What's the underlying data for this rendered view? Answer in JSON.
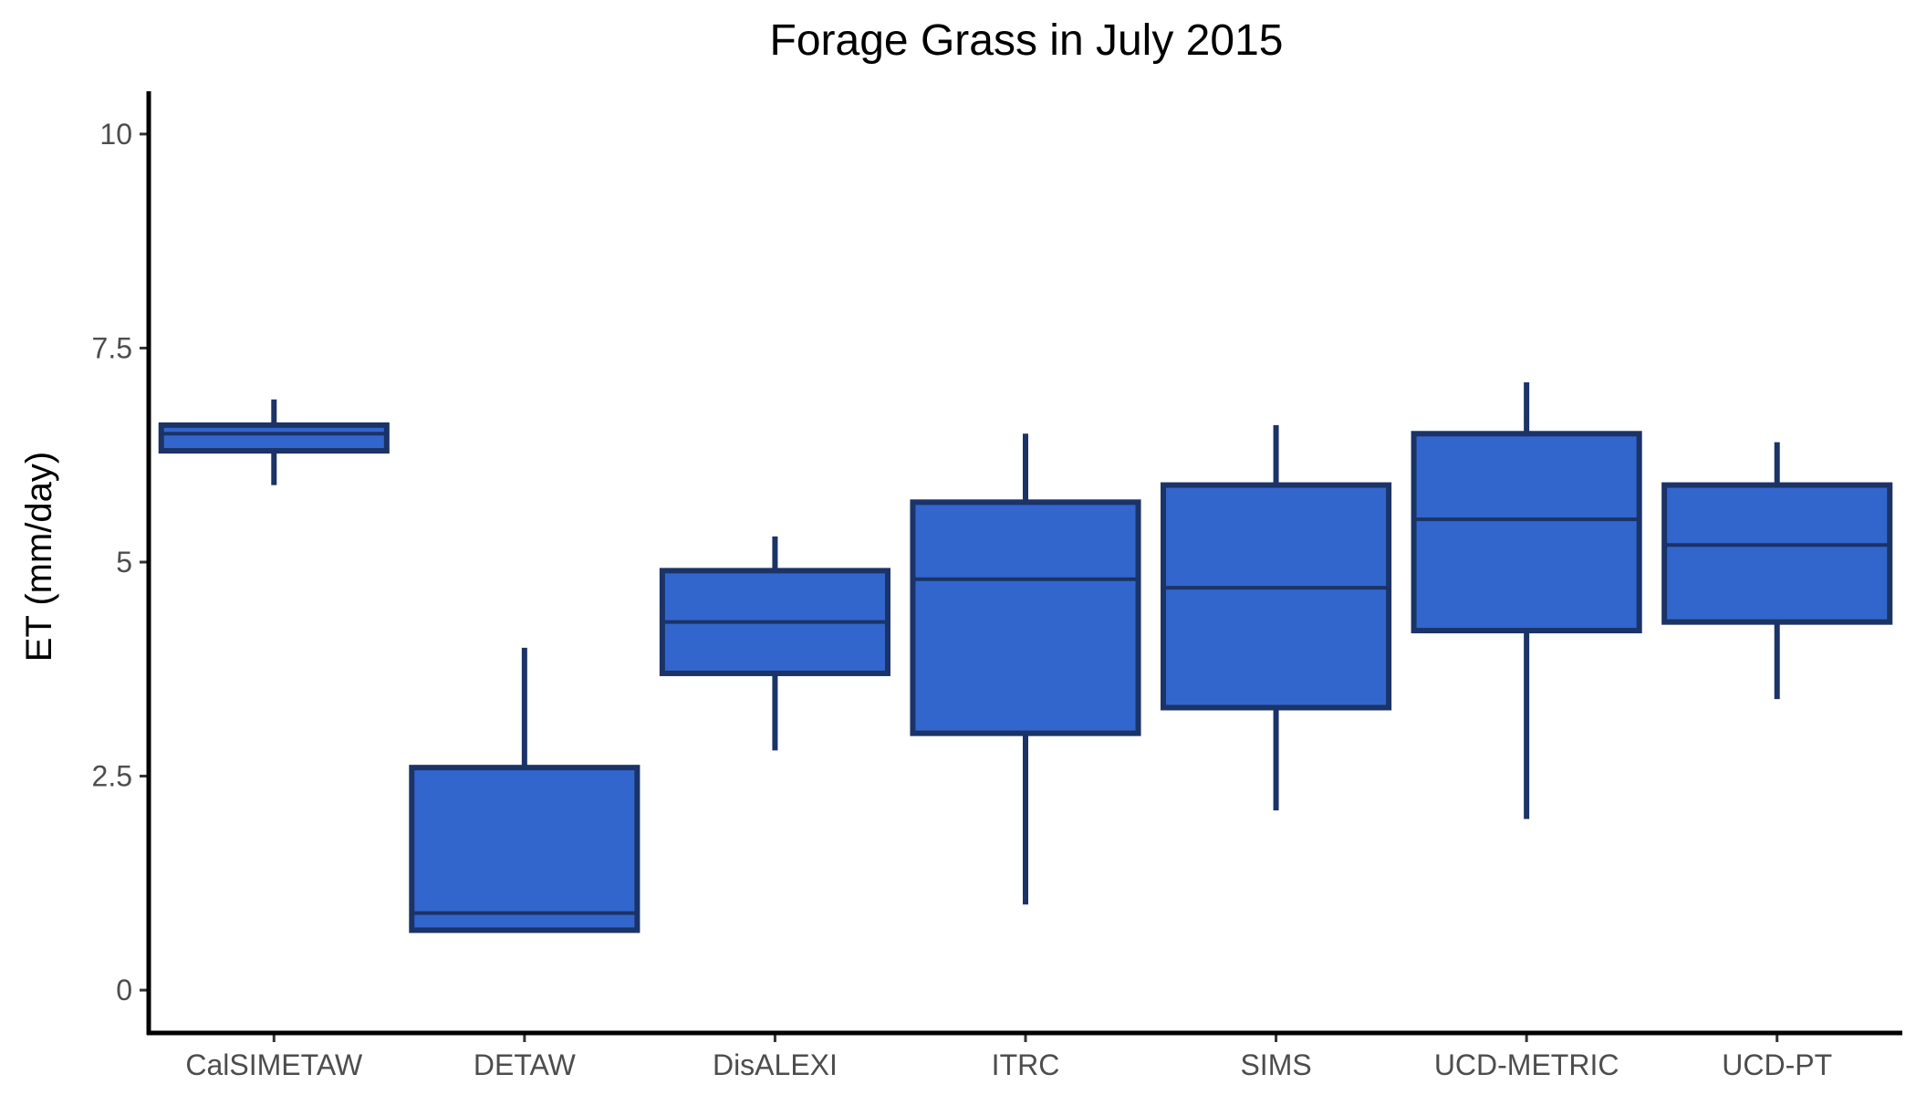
{
  "chart_data": {
    "type": "boxplot",
    "title": "Forage Grass in July 2015",
    "xlabel": "",
    "ylabel": "ET (mm/day)",
    "ylim": [
      -0.5,
      10.5
    ],
    "yticks": [
      0,
      2.5,
      5,
      7.5,
      10
    ],
    "ytick_labels": [
      "0",
      "2.5",
      "5",
      "7.5",
      "10"
    ],
    "grid": false,
    "categories": [
      "CalSIMETAW",
      "DETAW",
      "DisALEXI",
      "ITRC",
      "SIMS",
      "UCD-METRIC",
      "UCD-PT"
    ],
    "boxes": [
      {
        "category": "CalSIMETAW",
        "whisker_low": 5.9,
        "q1": 6.3,
        "median": 6.5,
        "q3": 6.6,
        "whisker_high": 6.9
      },
      {
        "category": "DETAW",
        "whisker_low": 0.7,
        "q1": 0.7,
        "median": 0.9,
        "q3": 2.6,
        "whisker_high": 4.0
      },
      {
        "category": "DisALEXI",
        "whisker_low": 2.8,
        "q1": 3.7,
        "median": 4.3,
        "q3": 4.9,
        "whisker_high": 5.3
      },
      {
        "category": "ITRC",
        "whisker_low": 1.0,
        "q1": 3.0,
        "median": 4.8,
        "q3": 5.7,
        "whisker_high": 6.5
      },
      {
        "category": "SIMS",
        "whisker_low": 2.1,
        "q1": 3.3,
        "median": 4.7,
        "q3": 5.9,
        "whisker_high": 6.6
      },
      {
        "category": "UCD-METRIC",
        "whisker_low": 2.0,
        "q1": 4.2,
        "median": 5.5,
        "q3": 6.5,
        "whisker_high": 7.1
      },
      {
        "category": "UCD-PT",
        "whisker_low": 3.4,
        "q1": 4.3,
        "median": 5.2,
        "q3": 5.9,
        "whisker_high": 6.4
      }
    ],
    "colors": {
      "box_fill": "#3366cc",
      "box_stroke": "#1b3366",
      "axis": "#000000",
      "tick_text": "#4d4d4d",
      "title_text": "#000000"
    }
  }
}
